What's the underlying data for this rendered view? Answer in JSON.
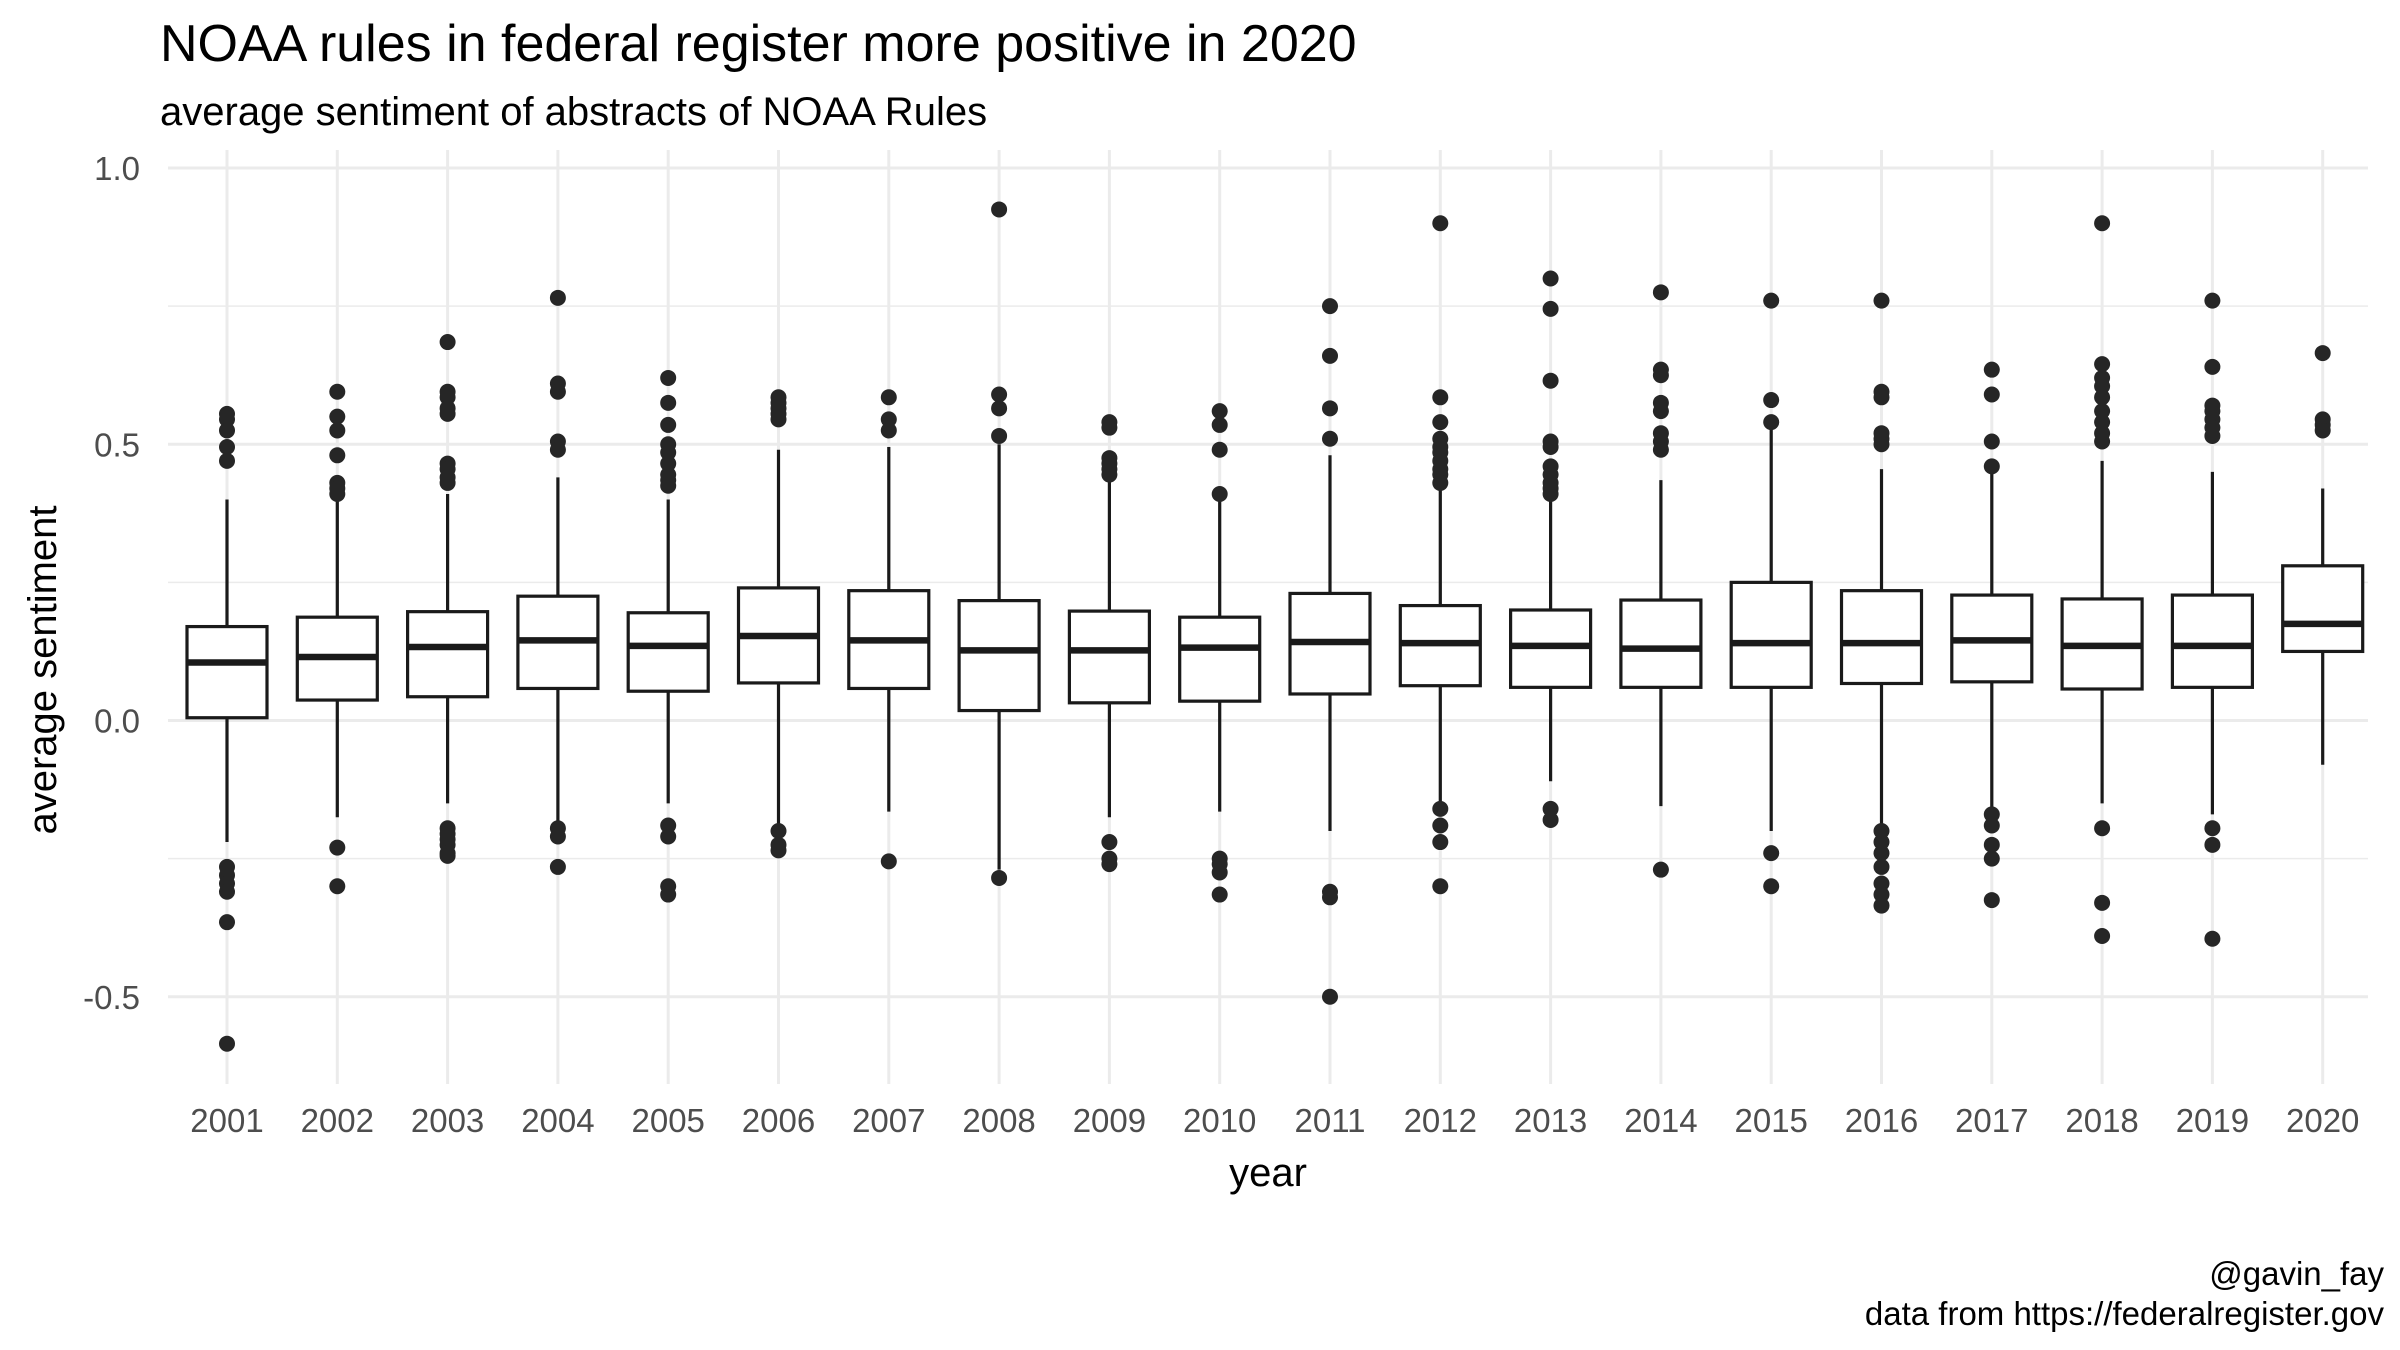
{
  "chart_data": {
    "type": "box",
    "title": "NOAA rules in federal register more positive in 2020",
    "subtitle": "average sentiment of abstracts of NOAA Rules",
    "xlabel": "year",
    "ylabel": "average sentiment",
    "ylim": [
      -0.65,
      1.0
    ],
    "yticks": [
      -0.5,
      0.0,
      0.5,
      1.0
    ],
    "ytick_labels": [
      "-0.5",
      "0.0",
      "0.5",
      "1.0"
    ],
    "grid": true,
    "legend": "none",
    "colors": {
      "box_line": "#1a1a1a",
      "point": "#262626",
      "grid": "#ebebeb",
      "axis_text": "#4d4d4d"
    },
    "categories": [
      "2001",
      "2002",
      "2003",
      "2004",
      "2005",
      "2006",
      "2007",
      "2008",
      "2009",
      "2010",
      "2011",
      "2012",
      "2013",
      "2014",
      "2015",
      "2016",
      "2017",
      "2018",
      "2019",
      "2020"
    ],
    "boxes": [
      {
        "x": "2001",
        "low": -0.22,
        "q1": 0.005,
        "median": 0.105,
        "q3": 0.17,
        "high": 0.4,
        "outliers": [
          0.555,
          0.545,
          0.525,
          0.495,
          0.47,
          -0.265,
          -0.28,
          -0.295,
          -0.31,
          -0.365,
          -0.585
        ]
      },
      {
        "x": "2002",
        "low": -0.175,
        "q1": 0.037,
        "median": 0.115,
        "q3": 0.187,
        "high": 0.4,
        "outliers": [
          0.595,
          0.55,
          0.525,
          0.48,
          0.43,
          0.42,
          0.41,
          -0.23,
          -0.3
        ]
      },
      {
        "x": "2003",
        "low": -0.15,
        "q1": 0.043,
        "median": 0.133,
        "q3": 0.197,
        "high": 0.41,
        "outliers": [
          0.685,
          0.595,
          0.585,
          0.565,
          0.555,
          0.465,
          0.455,
          0.44,
          0.43,
          -0.195,
          -0.205,
          -0.215,
          -0.225,
          -0.24,
          -0.245
        ]
      },
      {
        "x": "2004",
        "low": -0.19,
        "q1": 0.058,
        "median": 0.145,
        "q3": 0.225,
        "high": 0.44,
        "outliers": [
          0.765,
          0.61,
          0.595,
          0.505,
          0.49,
          -0.195,
          -0.21,
          -0.265
        ]
      },
      {
        "x": "2005",
        "low": -0.15,
        "q1": 0.053,
        "median": 0.135,
        "q3": 0.195,
        "high": 0.4,
        "outliers": [
          0.62,
          0.575,
          0.535,
          0.5,
          0.485,
          0.465,
          0.445,
          0.435,
          0.425,
          -0.19,
          -0.21,
          -0.3,
          -0.315
        ]
      },
      {
        "x": "2006",
        "low": -0.19,
        "q1": 0.068,
        "median": 0.153,
        "q3": 0.24,
        "high": 0.49,
        "outliers": [
          0.585,
          0.575,
          0.565,
          0.555,
          0.545,
          -0.2,
          -0.225,
          -0.235
        ]
      },
      {
        "x": "2007",
        "low": -0.165,
        "q1": 0.058,
        "median": 0.145,
        "q3": 0.235,
        "high": 0.495,
        "outliers": [
          0.585,
          0.545,
          0.525,
          -0.255
        ]
      },
      {
        "x": "2008",
        "low": -0.27,
        "q1": 0.018,
        "median": 0.127,
        "q3": 0.217,
        "high": 0.5,
        "outliers": [
          0.925,
          0.59,
          0.565,
          0.515,
          -0.285
        ]
      },
      {
        "x": "2009",
        "low": -0.175,
        "q1": 0.032,
        "median": 0.127,
        "q3": 0.198,
        "high": 0.435,
        "outliers": [
          0.54,
          0.53,
          0.475,
          0.465,
          0.455,
          0.445,
          -0.22,
          -0.25,
          -0.26
        ]
      },
      {
        "x": "2010",
        "low": -0.165,
        "q1": 0.035,
        "median": 0.132,
        "q3": 0.187,
        "high": 0.4,
        "outliers": [
          0.56,
          0.535,
          0.49,
          0.41,
          -0.25,
          -0.26,
          -0.275,
          -0.315
        ]
      },
      {
        "x": "2011",
        "low": -0.2,
        "q1": 0.048,
        "median": 0.142,
        "q3": 0.23,
        "high": 0.48,
        "outliers": [
          0.75,
          0.66,
          0.565,
          0.51,
          -0.31,
          -0.32,
          -0.5
        ]
      },
      {
        "x": "2012",
        "low": -0.15,
        "q1": 0.063,
        "median": 0.14,
        "q3": 0.208,
        "high": 0.42,
        "outliers": [
          0.9,
          0.585,
          0.54,
          0.51,
          0.495,
          0.485,
          0.47,
          0.455,
          0.445,
          0.43,
          -0.16,
          -0.19,
          -0.22,
          -0.3
        ]
      },
      {
        "x": "2013",
        "low": -0.11,
        "q1": 0.06,
        "median": 0.135,
        "q3": 0.2,
        "high": 0.4,
        "outliers": [
          0.8,
          0.745,
          0.615,
          0.505,
          0.495,
          0.46,
          0.445,
          0.43,
          0.42,
          0.41,
          -0.16,
          -0.18
        ]
      },
      {
        "x": "2014",
        "low": -0.155,
        "q1": 0.06,
        "median": 0.13,
        "q3": 0.218,
        "high": 0.435,
        "outliers": [
          0.775,
          0.635,
          0.625,
          0.575,
          0.56,
          0.52,
          0.505,
          0.49,
          -0.27
        ]
      },
      {
        "x": "2015",
        "low": -0.2,
        "q1": 0.06,
        "median": 0.14,
        "q3": 0.25,
        "high": 0.53,
        "outliers": [
          0.76,
          0.58,
          0.54,
          -0.24,
          -0.3
        ]
      },
      {
        "x": "2016",
        "low": -0.19,
        "q1": 0.067,
        "median": 0.14,
        "q3": 0.235,
        "high": 0.455,
        "outliers": [
          0.76,
          0.595,
          0.585,
          0.52,
          0.51,
          0.5,
          -0.2,
          -0.22,
          -0.24,
          -0.265,
          -0.295,
          -0.315,
          -0.335
        ]
      },
      {
        "x": "2017",
        "low": -0.165,
        "q1": 0.07,
        "median": 0.145,
        "q3": 0.227,
        "high": 0.455,
        "outliers": [
          0.635,
          0.59,
          0.505,
          0.46,
          -0.17,
          -0.19,
          -0.225,
          -0.25,
          -0.325
        ]
      },
      {
        "x": "2018",
        "low": -0.15,
        "q1": 0.057,
        "median": 0.135,
        "q3": 0.22,
        "high": 0.47,
        "outliers": [
          0.9,
          0.645,
          0.62,
          0.605,
          0.585,
          0.56,
          0.54,
          0.52,
          0.505,
          -0.195,
          -0.33,
          -0.39
        ]
      },
      {
        "x": "2019",
        "low": -0.17,
        "q1": 0.06,
        "median": 0.135,
        "q3": 0.227,
        "high": 0.45,
        "outliers": [
          0.76,
          0.64,
          0.57,
          0.56,
          0.545,
          0.53,
          0.515,
          -0.195,
          -0.225,
          -0.395
        ]
      },
      {
        "x": "2020",
        "low": -0.08,
        "q1": 0.125,
        "median": 0.175,
        "q3": 0.28,
        "high": 0.42,
        "outliers": [
          0.665,
          0.545,
          0.535,
          0.525
        ]
      }
    ]
  },
  "caption": {
    "handle": "@gavin_fay",
    "source": "data from https://federalregister.gov"
  }
}
